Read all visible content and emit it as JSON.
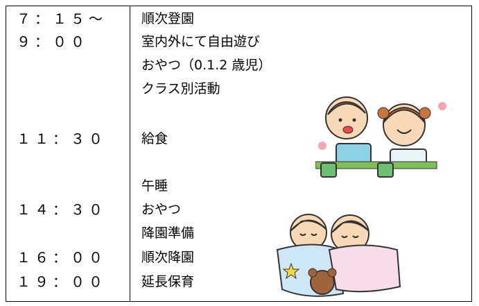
{
  "schedule": {
    "times": [
      "７：１５～",
      "９：００",
      "１１：３０",
      "１４：３０",
      "１６：００",
      "１９：００"
    ],
    "activities": [
      "順次登園",
      "室内外にて自由遊び",
      "おやつ（0.1.2 歳児）",
      "クラス別活動",
      "給食",
      "午睡",
      "おやつ",
      "降園準備",
      "順次降園",
      "延長保育"
    ]
  }
}
